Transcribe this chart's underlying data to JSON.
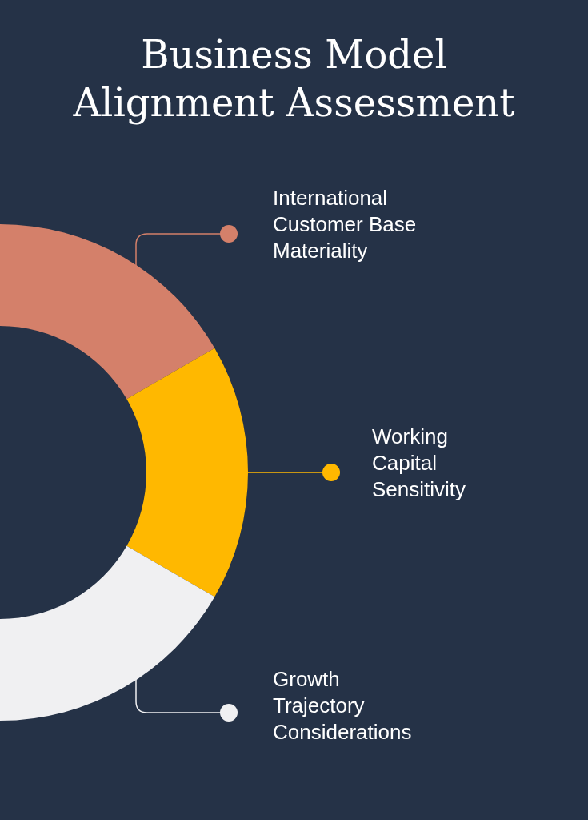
{
  "chart_data": {
    "type": "donut",
    "title": "Business Model Alignment Assessment",
    "categories": [
      "International Customer Base Materiality",
      "Working Capital Sensitivity",
      "Growth Trajectory Considerations"
    ],
    "values": [
      33.3,
      33.4,
      33.3
    ],
    "colors": [
      "#d4806a",
      "#ffb800",
      "#f0f0f2"
    ],
    "legend": "right"
  }
}
